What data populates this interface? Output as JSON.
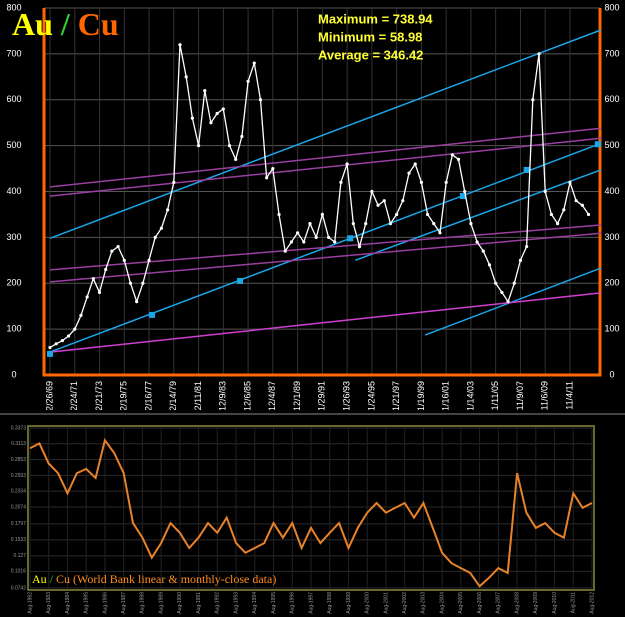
{
  "chart_data": [
    {
      "type": "line",
      "title_parts": [
        {
          "text": "Au",
          "color": "#ffff00"
        },
        {
          "text": "/",
          "color": "#33cc33"
        },
        {
          "text": "Cu",
          "color": "#ff6600"
        }
      ],
      "annotations": [
        "Maximum = 738.94",
        "Minimum = 58.98",
        "Average = 346.42"
      ],
      "categories": [
        "12/26/69",
        null,
        null,
        null,
        "12/24/71",
        null,
        null,
        null,
        "12/21/73",
        null,
        null,
        null,
        "12/19/75",
        null,
        null,
        null,
        "12/16/77",
        null,
        null,
        null,
        "12/14/79",
        null,
        null,
        null,
        "12/11/81",
        null,
        null,
        null,
        "12/9/83",
        null,
        null,
        null,
        "12/6/85",
        null,
        null,
        null,
        "12/4/87",
        null,
        null,
        null,
        "12/1/89",
        null,
        null,
        null,
        "11/29/91",
        null,
        null,
        null,
        "11/26/93",
        null,
        null,
        null,
        "11/24/95",
        null,
        null,
        null,
        "11/21/97",
        null,
        null,
        null,
        "11/19/99",
        null,
        null,
        null,
        "11/16/01",
        null,
        null,
        null,
        "11/14/03",
        null,
        null,
        null,
        "11/11/05",
        null,
        null,
        null,
        "11/9/07",
        null,
        null,
        null,
        "11/6/09",
        null,
        null,
        null,
        "11/4/11",
        null,
        null,
        null
      ],
      "series": [
        {
          "color": "#ffffff",
          "values": [
            60,
            68,
            75,
            85,
            100,
            130,
            170,
            210,
            180,
            230,
            270,
            280,
            250,
            200,
            160,
            200,
            250,
            300,
            320,
            360,
            420,
            720,
            650,
            560,
            500,
            620,
            550,
            570,
            580,
            500,
            470,
            520,
            640,
            680,
            600,
            430,
            450,
            350,
            270,
            290,
            310,
            290,
            330,
            300,
            350,
            300,
            290,
            420,
            460,
            330,
            280,
            330,
            400,
            370,
            380,
            330,
            350,
            380,
            440,
            460,
            420,
            350,
            330,
            310,
            420,
            480,
            470,
            400,
            330,
            290,
            270,
            240,
            200,
            180,
            160,
            200,
            250,
            280,
            600,
            700,
            400,
            350,
            330,
            360,
            420,
            380,
            370,
            350
          ]
        }
      ],
      "ylim": [
        0,
        800
      ],
      "yticks": [
        0,
        100,
        200,
        300,
        400,
        500,
        600,
        700,
        800
      ],
      "grid": true,
      "axis_color": "#ff6a00",
      "trend_lines": [
        {
          "color": "#1aa6e8",
          "x": [
            0,
            89
          ],
          "values": [
            298,
            752
          ]
        },
        {
          "color": "#1aa6e8",
          "x": [
            0,
            89
          ],
          "values": [
            50,
            505
          ]
        },
        {
          "color": "#1aa6e8",
          "x": [
            49.3,
            89
          ],
          "values": [
            250,
            447
          ]
        },
        {
          "color": "#1aa6e8",
          "x": [
            60.6,
            89
          ],
          "values": [
            87,
            233
          ]
        },
        {
          "color": "#d040d0",
          "x": [
            0,
            89
          ],
          "values": [
            50,
            179
          ]
        },
        {
          "color": "#9a3fa0",
          "x": [
            0,
            89
          ],
          "values": [
            410,
            538
          ]
        },
        {
          "color": "#9a3fa0",
          "x": [
            0,
            89
          ],
          "values": [
            390,
            516
          ]
        },
        {
          "color": "#9a3fa0",
          "x": [
            0,
            89
          ],
          "values": [
            229,
            327
          ]
        },
        {
          "color": "#9a3fa0",
          "x": [
            0,
            89
          ],
          "values": [
            203,
            309
          ]
        }
      ],
      "markers": {
        "color": "#1aa6e8",
        "x": [
          0,
          16.5,
          30.7,
          48.5,
          66.7,
          77,
          88.5
        ],
        "values": [
          46,
          131,
          205,
          298,
          390,
          447,
          503
        ]
      }
    },
    {
      "type": "line",
      "caption_parts": [
        {
          "text": "Au",
          "color": "#ffff00"
        },
        {
          "text": " / ",
          "color": "#33cc33"
        },
        {
          "text": "Cu (World Bank linear & monthly-close data)",
          "color": "#ff8c1a"
        }
      ],
      "categories": [
        "Aug-1982",
        null,
        "Aug-1983",
        null,
        "Aug-1984",
        null,
        "Aug-1985",
        null,
        "Aug-1986",
        null,
        "Aug-1987",
        null,
        "Aug-1988",
        null,
        "Aug-1989",
        null,
        "Aug-1990",
        null,
        "Aug-1991",
        null,
        "Aug-1992",
        null,
        "Aug-1993",
        null,
        "Aug-1994",
        null,
        "Aug-1995",
        null,
        "Aug-1996",
        null,
        "Aug-1997",
        null,
        "Aug-1998",
        null,
        "Aug-1999",
        null,
        "Aug-2000",
        null,
        "Aug-2001",
        null,
        "Aug-2002",
        null,
        "Aug-2003",
        null,
        "Aug-2004",
        null,
        "Aug-2005",
        null,
        "Aug-2006",
        null,
        "Aug-2007",
        null,
        "Aug-2008",
        null,
        "Aug-2009",
        null,
        "Aug-2010",
        null,
        "Aug-2011",
        null,
        "Aug-2012"
      ],
      "series": [
        {
          "color": "#e8822a",
          "values": [
            0.304,
            0.312,
            0.279,
            0.263,
            0.23,
            0.263,
            0.27,
            0.255,
            0.317,
            0.296,
            0.263,
            0.181,
            0.157,
            0.124,
            0.148,
            0.181,
            0.165,
            0.14,
            0.157,
            0.181,
            0.165,
            0.19,
            0.148,
            0.132,
            0.14,
            0.148,
            0.181,
            0.157,
            0.181,
            0.14,
            0.173,
            0.148,
            0.165,
            0.181,
            0.14,
            0.173,
            0.198,
            0.214,
            0.198,
            0.206,
            0.214,
            0.19,
            0.214,
            0.173,
            0.132,
            0.115,
            0.107,
            0.099,
            0.077,
            0.091,
            0.107,
            0.099,
            0.263,
            0.198,
            0.173,
            0.181,
            0.165,
            0.157,
            0.23,
            0.206,
            0.214
          ]
        }
      ],
      "ylim": [
        0.0742,
        0.3373
      ],
      "yticks": [
        0.0742,
        0.1016,
        0.127,
        0.1533,
        0.1797,
        0.2074,
        0.2334,
        0.2593,
        0.2853,
        0.3113,
        0.3373
      ],
      "grid": true,
      "frame_color": "#8a8a3a"
    }
  ]
}
